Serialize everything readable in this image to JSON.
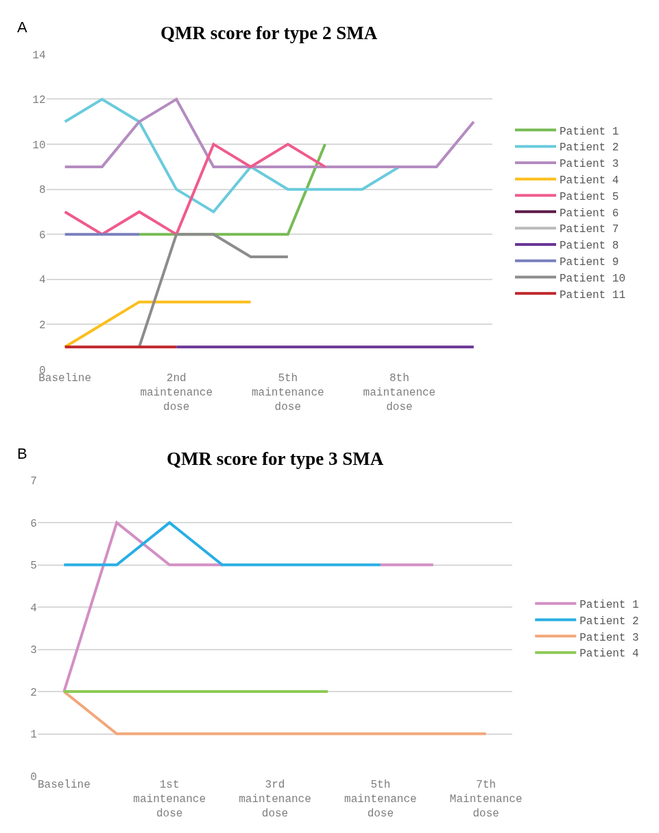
{
  "chart_data": [
    {
      "type": "line",
      "title": "QMR score for type 2 SMA",
      "annotations": [
        "A"
      ],
      "categories": [
        "Baseline",
        null,
        null,
        "2nd maintenance dose",
        null,
        null,
        "5th maintenance dose",
        null,
        null,
        "8th maintanence dose",
        null,
        null
      ],
      "ylim": [
        0,
        14
      ],
      "yticks": [
        0,
        2,
        4,
        6,
        8,
        10,
        12,
        14
      ],
      "grid": "y",
      "legend": "right",
      "marker": "none",
      "line_style": "solid",
      "series": [
        {
          "name": "Patient 1",
          "color": "#77bb55",
          "values": [
            null,
            null,
            6,
            6,
            6,
            6,
            6,
            10,
            null,
            null,
            null,
            null
          ]
        },
        {
          "name": "Patient 2",
          "color": "#6acbdc",
          "values": [
            11,
            12,
            11,
            8,
            7,
            9,
            8,
            8,
            8,
            9,
            null,
            null
          ]
        },
        {
          "name": "Patient 3",
          "color": "#b48cc0",
          "values": [
            9,
            9,
            11,
            12,
            9,
            9,
            9,
            9,
            9,
            9,
            9,
            11
          ]
        },
        {
          "name": "Patient 4",
          "color": "#fbbf1d",
          "values": [
            1,
            2,
            3,
            3,
            3,
            3,
            null,
            null,
            null,
            null,
            null,
            null
          ]
        },
        {
          "name": "Patient 5",
          "color": "#ef5b8c",
          "values": [
            7,
            6,
            7,
            6,
            10,
            9,
            10,
            9,
            null,
            null,
            null,
            null
          ]
        },
        {
          "name": "Patient 6",
          "color": "#5c1a48",
          "values": [
            null,
            null,
            null,
            null,
            null,
            null,
            null,
            null,
            null,
            null,
            null,
            null
          ]
        },
        {
          "name": "Patient 7",
          "color": "#bbbbbb",
          "values": [
            null,
            null,
            null,
            null,
            null,
            null,
            null,
            null,
            null,
            null,
            null,
            null
          ]
        },
        {
          "name": "Patient 8",
          "color": "#6a3595",
          "values": [
            null,
            null,
            null,
            1,
            1,
            1,
            1,
            1,
            1,
            1,
            1,
            1
          ]
        },
        {
          "name": "Patient 9",
          "color": "#7a7fbd",
          "values": [
            6,
            6,
            6,
            null,
            null,
            null,
            null,
            null,
            null,
            null,
            null,
            null
          ]
        },
        {
          "name": "Patient 10",
          "color": "#8c8c8c",
          "values": [
            null,
            null,
            1,
            6,
            6,
            5,
            5,
            null,
            null,
            null,
            null,
            null
          ]
        },
        {
          "name": "Patient 11",
          "color": "#c0262b",
          "values": [
            1,
            1,
            1,
            1,
            null,
            null,
            null,
            null,
            null,
            null,
            null,
            null
          ]
        }
      ]
    },
    {
      "type": "line",
      "title": "QMR score for type 3 SMA",
      "annotations": [
        "B"
      ],
      "categories": [
        "Baseline",
        null,
        "1st maintenance dose",
        null,
        "3rd maintenance dose",
        null,
        "5th maintenance dose",
        null,
        "7th Maintenance dose"
      ],
      "ylim": [
        0,
        7
      ],
      "yticks": [
        0,
        1,
        2,
        3,
        4,
        5,
        6,
        7
      ],
      "grid": "y",
      "legend": "right",
      "marker": "none",
      "line_style": "solid",
      "series": [
        {
          "name": "Patient 1",
          "color": "#d38fc4",
          "values": [
            2,
            6,
            5,
            5,
            null,
            null,
            5,
            5,
            null
          ]
        },
        {
          "name": "Patient 2",
          "color": "#28aee4",
          "values": [
            5,
            5,
            6,
            5,
            5,
            5,
            5,
            null,
            null
          ]
        },
        {
          "name": "Patient 3",
          "color": "#f2a77a",
          "values": [
            2,
            1,
            1,
            1,
            1,
            1,
            1,
            1,
            1
          ]
        },
        {
          "name": "Patient 4",
          "color": "#8dc955",
          "values": [
            2,
            2,
            2,
            2,
            2,
            2,
            null,
            null,
            null
          ]
        }
      ]
    }
  ]
}
